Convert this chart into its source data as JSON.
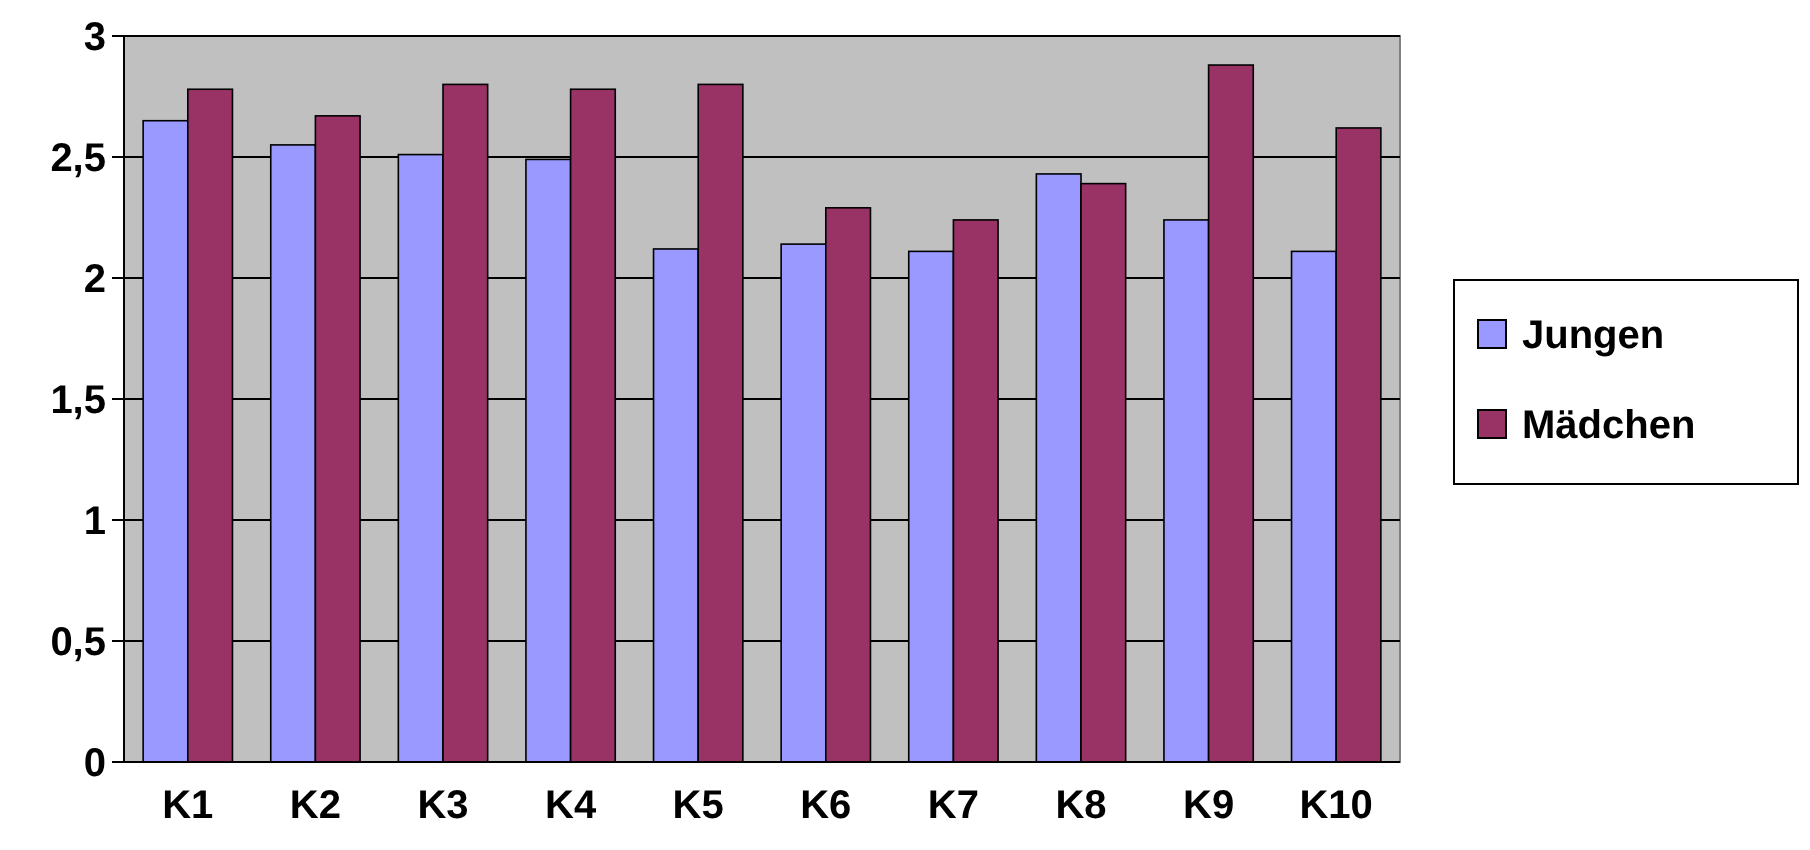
{
  "chart_data": {
    "type": "bar",
    "categories": [
      "K1",
      "K2",
      "K3",
      "K4",
      "K5",
      "K6",
      "K7",
      "K8",
      "K9",
      "K10"
    ],
    "series": [
      {
        "name": "Jungen",
        "color": "#9999ff",
        "values": [
          2.65,
          2.55,
          2.51,
          2.49,
          2.12,
          2.14,
          2.11,
          2.43,
          2.24,
          2.11
        ]
      },
      {
        "name": "Mädchen",
        "color": "#993366",
        "values": [
          2.78,
          2.67,
          2.8,
          2.78,
          2.8,
          2.29,
          2.24,
          2.39,
          2.88,
          2.62
        ]
      }
    ],
    "ylim": [
      0,
      3
    ],
    "yticks": [
      0,
      {
        "value": 0.5,
        "label": "0,5"
      },
      1,
      {
        "value": 1.5,
        "label": "1,5"
      },
      2,
      {
        "value": 2.5,
        "label": "2,5"
      },
      3
    ],
    "grid": "y",
    "legend": "right"
  }
}
